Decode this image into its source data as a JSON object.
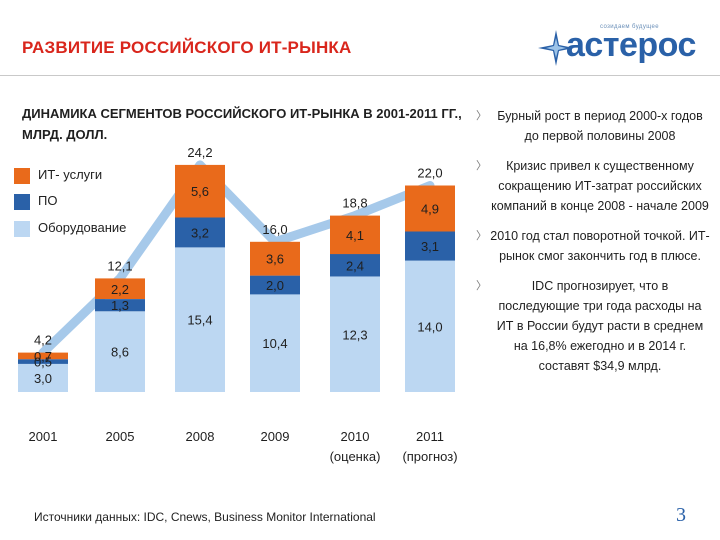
{
  "header": {
    "title": "РАЗВИТИЕ РОССИЙСКОГО ИТ-РЫНКА",
    "logo_tagline": "созидаем будущее",
    "logo_word": "астерос"
  },
  "chart_data": {
    "type": "bar",
    "stacked": true,
    "title": "ДИНАМИКА СЕГМЕНТОВ РОССИЙСКОГО ИТ-РЫНКА В 2001-2011 ГГ., МЛРД. ДОЛЛ.",
    "categories": [
      "2001",
      "2005",
      "2008",
      "2009",
      "2010",
      "2011"
    ],
    "category_sublabels": [
      "",
      "",
      "",
      "",
      "(оценка)",
      "(прогноз)"
    ],
    "series": [
      {
        "name": "Оборудование",
        "color": "#bcd7f2",
        "values": [
          3.0,
          8.6,
          15.4,
          10.4,
          12.3,
          14.0
        ],
        "labels": [
          "3,0",
          "8,6",
          "15,4",
          "10,4",
          "12,3",
          "14,0"
        ]
      },
      {
        "name": "ПО",
        "color": "#2a61a8",
        "values": [
          0.5,
          1.3,
          3.2,
          2.0,
          2.4,
          3.1
        ],
        "labels": [
          "0,5",
          "1,3",
          "3,2",
          "2,0",
          "2,4",
          "3,1"
        ]
      },
      {
        "name": "ИТ- услуги",
        "color": "#e96a1b",
        "values": [
          0.7,
          2.2,
          5.6,
          3.6,
          4.1,
          4.9
        ],
        "labels": [
          "0,7",
          "2,2",
          "5,6",
          "3,6",
          "4,1",
          "4,9"
        ]
      }
    ],
    "totals": [
      4.2,
      12.1,
      24.2,
      16.0,
      18.8,
      22.0
    ],
    "total_labels": [
      "4,2",
      "12,1",
      "24,2",
      "16,0",
      "18,8",
      "22,0"
    ],
    "legend": [
      "ИТ- услуги",
      "ПО",
      "Оборудование"
    ],
    "legend_position": "top-left",
    "ylim": [
      0,
      26
    ],
    "grid": false,
    "trend_line": true
  },
  "bullets": [
    "Бурный рост в период 2000-х годов до первой половины 2008",
    "Кризис привел к существенному сокращению ИТ-затрат российских компаний в конце 2008 - начале 2009",
    "2010 год стал поворотной точкой. ИТ-рынок смог закончить год в плюсе.",
    "IDC прогнозирует, что в последующие три года расходы на ИТ в России будут расти в среднем на 16,8% ежегодно и в 2014 г. составят $34,9 млрд."
  ],
  "footer": {
    "source": "Источники данных:  IDC, Cnews,  Business Monitor International",
    "page_number": "3"
  }
}
